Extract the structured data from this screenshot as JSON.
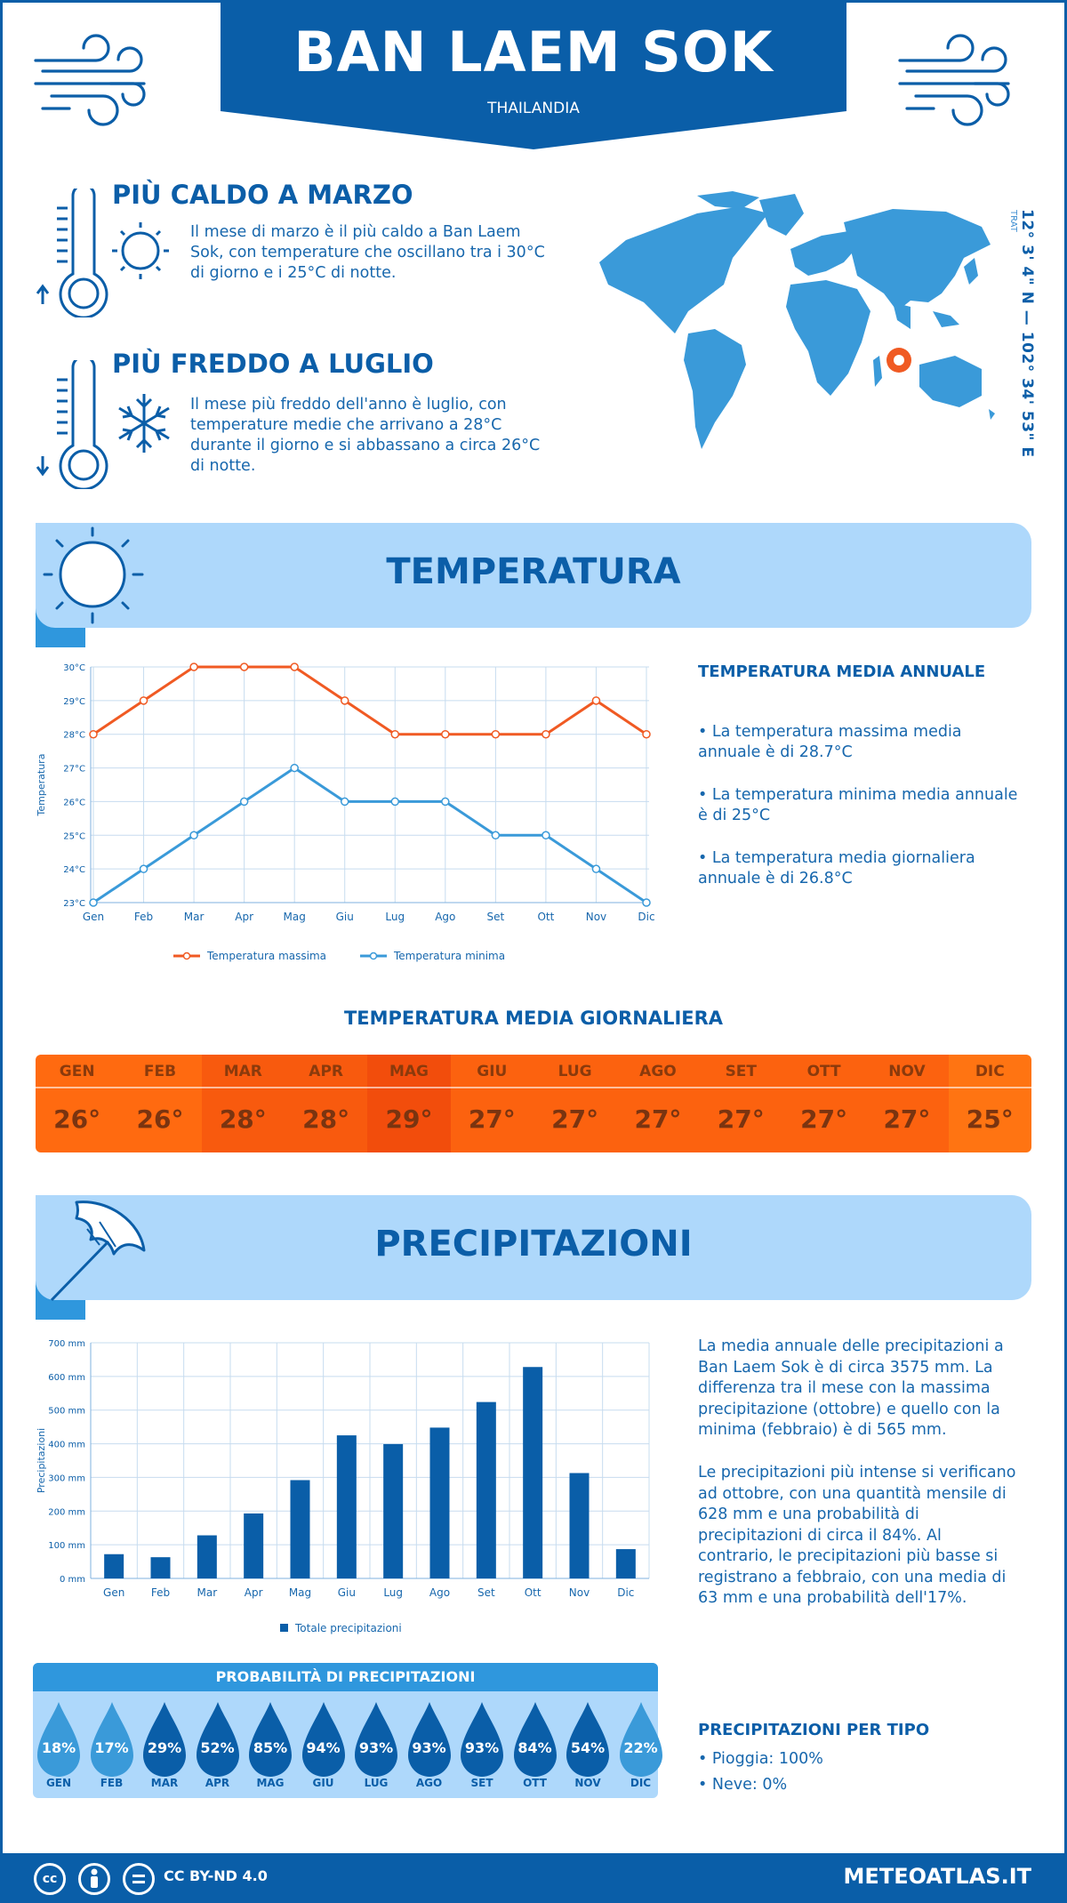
{
  "header": {
    "city": "BAN LAEM SOK",
    "country": "THAILANDIA"
  },
  "hottest": {
    "title": "PIÙ CALDO A MARZO",
    "text": "Il mese di marzo è il più caldo a Ban Laem Sok, con temperature che oscillano tra i 30°C di giorno e i 25°C di notte."
  },
  "coldest": {
    "title": "PIÙ FREDDO A LUGLIO",
    "text": "Il mese più freddo dell'anno è luglio, con temperature medie che arrivano a 28°C durante il giorno e si abbassano a circa 26°C di notte."
  },
  "location": {
    "coords": "12° 3' 4\" N — 102° 34' 53\" E",
    "region": "TRAT"
  },
  "temperature_section": {
    "title": "TEMPERATURA",
    "annual_heading": "TEMPERATURA MEDIA ANNUALE",
    "bullets": [
      "• La temperatura massima media annuale è di 28.7°C",
      "• La temperatura minima media annuale è di 25°C",
      "• La temperatura media giornaliera annuale è di 26.8°C"
    ]
  },
  "chart_data": [
    {
      "type": "line",
      "ylabel": "Temperatura",
      "categories": [
        "Gen",
        "Feb",
        "Mar",
        "Apr",
        "Mag",
        "Giu",
        "Lug",
        "Ago",
        "Set",
        "Ott",
        "Nov",
        "Dic"
      ],
      "ylim": [
        23,
        30
      ],
      "yticks": [
        "23°C",
        "24°C",
        "25°C",
        "26°C",
        "27°C",
        "28°C",
        "29°C",
        "30°C"
      ],
      "legend_position": "bottom",
      "series": [
        {
          "name": "Temperatura massima",
          "color": "#f05a23",
          "values": [
            28,
            29,
            30,
            30,
            30,
            29,
            28,
            28,
            28,
            28,
            29,
            28
          ]
        },
        {
          "name": "Temperatura minima",
          "color": "#3a9ad9",
          "values": [
            23,
            24,
            25,
            26,
            27,
            26,
            26,
            26,
            25,
            25,
            24,
            23
          ]
        }
      ]
    },
    {
      "type": "bar",
      "ylabel": "Precipitazioni",
      "categories": [
        "Gen",
        "Feb",
        "Mar",
        "Apr",
        "Mag",
        "Giu",
        "Lug",
        "Ago",
        "Set",
        "Ott",
        "Nov",
        "Dic"
      ],
      "ylim": [
        0,
        700
      ],
      "yticks": [
        "0 mm",
        "100 mm",
        "200 mm",
        "300 mm",
        "400 mm",
        "500 mm",
        "600 mm",
        "700 mm"
      ],
      "legend_position": "bottom",
      "series": [
        {
          "name": "Totale precipitazioni",
          "color": "#0a5ea8",
          "values": [
            72,
            63,
            128,
            193,
            292,
            425,
            399,
            448,
            524,
            628,
            313,
            87
          ]
        }
      ]
    }
  ],
  "daily_temp": {
    "title": "TEMPERATURA MEDIA GIORNALIERA",
    "months": [
      {
        "m": "GEN",
        "v": "26°",
        "color": "#ff6a10"
      },
      {
        "m": "FEB",
        "v": "26°",
        "color": "#ff6a10"
      },
      {
        "m": "MAR",
        "v": "28°",
        "color": "#f85a0e"
      },
      {
        "m": "APR",
        "v": "28°",
        "color": "#f85a0e"
      },
      {
        "m": "MAG",
        "v": "29°",
        "color": "#f24d0c"
      },
      {
        "m": "GIU",
        "v": "27°",
        "color": "#fc620f"
      },
      {
        "m": "LUG",
        "v": "27°",
        "color": "#fc620f"
      },
      {
        "m": "AGO",
        "v": "27°",
        "color": "#fc620f"
      },
      {
        "m": "SET",
        "v": "27°",
        "color": "#fc620f"
      },
      {
        "m": "OTT",
        "v": "27°",
        "color": "#fc620f"
      },
      {
        "m": "NOV",
        "v": "27°",
        "color": "#fc620f"
      },
      {
        "m": "DIC",
        "v": "25°",
        "color": "#ff7412"
      }
    ]
  },
  "precip_section": {
    "title": "PRECIPITAZIONI",
    "p1": "La media annuale delle precipitazioni a Ban Laem Sok è di circa 3575 mm. La differenza tra il mese con la massima precipitazione (ottobre) e quello con la minima (febbraio) è di 565 mm.",
    "p2": "Le precipitazioni più intense si verificano ad ottobre, con una quantità mensile di 628 mm e una probabilità di precipitazioni di circa il 84%. Al contrario, le precipitazioni più basse si registrano a febbraio, con una media di 63 mm e una probabilità dell'17%."
  },
  "probability": {
    "title": "PROBABILITÀ DI PRECIPITAZIONI",
    "items": [
      {
        "m": "GEN",
        "v": "18%",
        "color": "#3a9ad9"
      },
      {
        "m": "FEB",
        "v": "17%",
        "color": "#3a9ad9"
      },
      {
        "m": "MAR",
        "v": "29%",
        "color": "#0a5ea8"
      },
      {
        "m": "APR",
        "v": "52%",
        "color": "#0a5ea8"
      },
      {
        "m": "MAG",
        "v": "85%",
        "color": "#0a5ea8"
      },
      {
        "m": "GIU",
        "v": "94%",
        "color": "#0a5ea8"
      },
      {
        "m": "LUG",
        "v": "93%",
        "color": "#0a5ea8"
      },
      {
        "m": "AGO",
        "v": "93%",
        "color": "#0a5ea8"
      },
      {
        "m": "SET",
        "v": "93%",
        "color": "#0a5ea8"
      },
      {
        "m": "OTT",
        "v": "84%",
        "color": "#0a5ea8"
      },
      {
        "m": "NOV",
        "v": "54%",
        "color": "#0a5ea8"
      },
      {
        "m": "DIC",
        "v": "22%",
        "color": "#3a9ad9"
      }
    ]
  },
  "precip_type": {
    "heading": "PRECIPITAZIONI PER TIPO",
    "rain": "• Pioggia: 100%",
    "snow": "• Neve: 0%"
  },
  "footer": {
    "license": "CC BY-ND 4.0",
    "site": "METEOATLAS.IT",
    "icons": [
      "cc-icon",
      "person-icon",
      "equals-icon"
    ]
  }
}
